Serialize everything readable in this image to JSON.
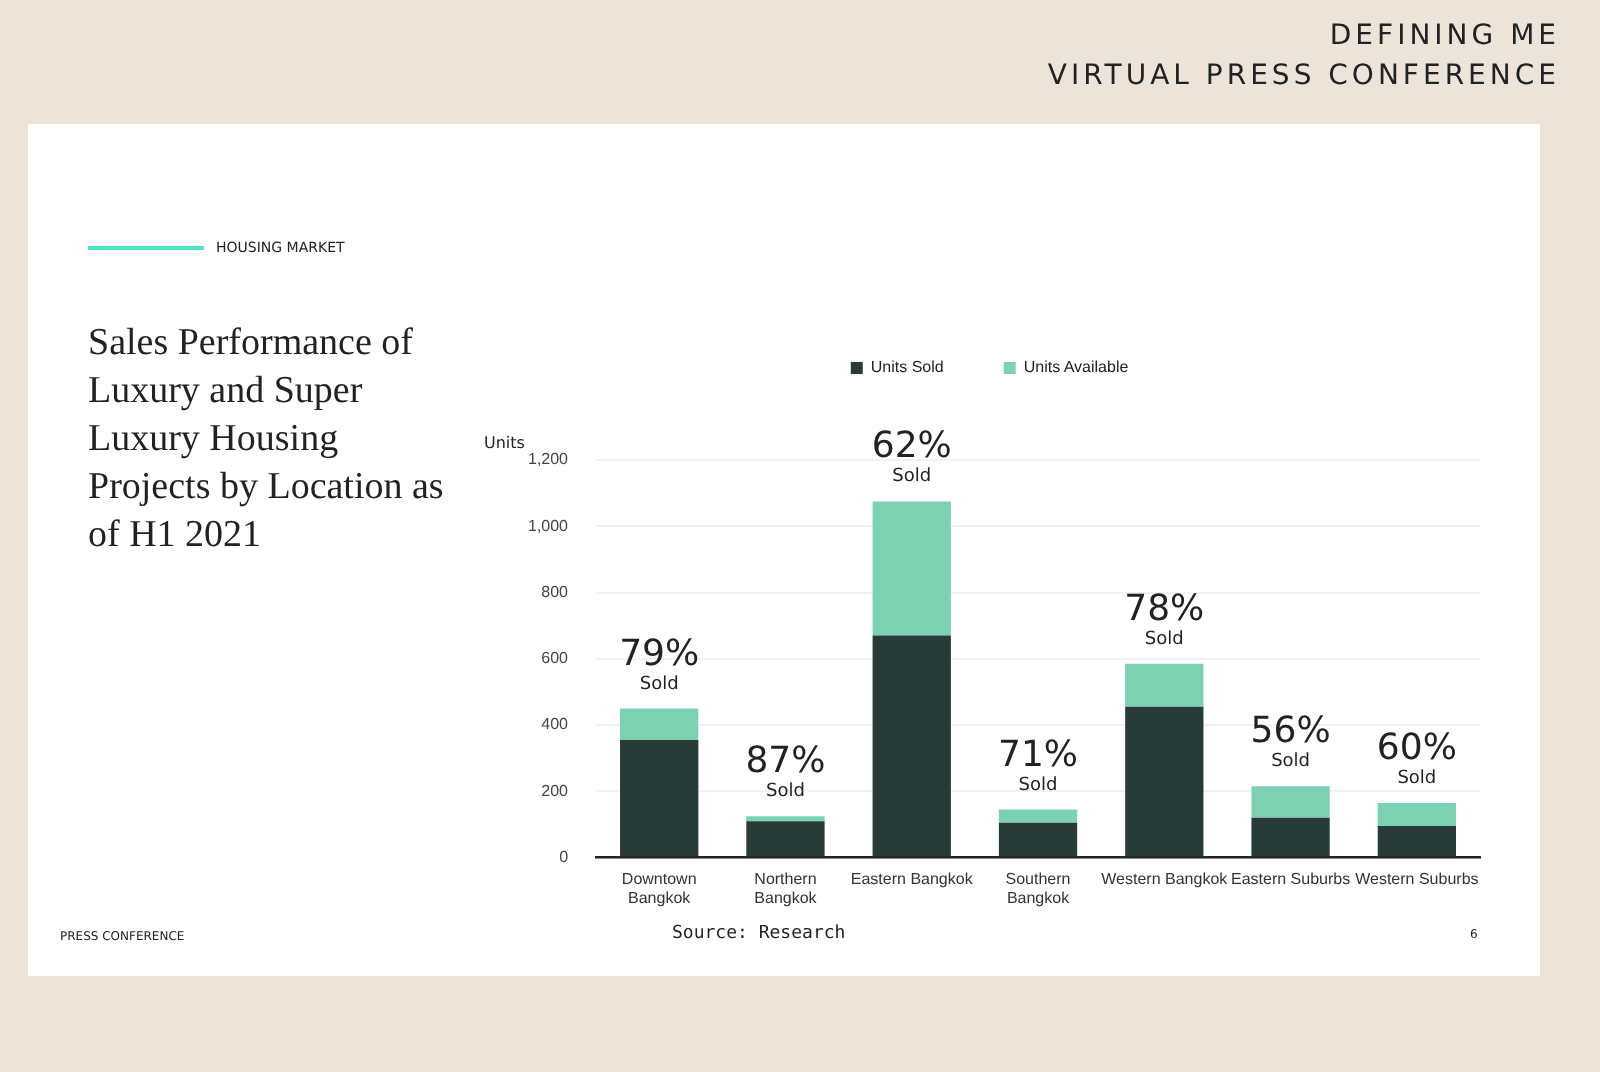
{
  "chart_data": {
    "type": "bar",
    "title": "Sales Performance of Luxury and Super Luxury Housing Projects by Location as of H1 2021",
    "ylabel": "Units",
    "categories": [
      "Downtown Bangkok",
      "Northern Bangkok",
      "Eastern Bangkok",
      "Southern Bangkok",
      "Western Bangkok",
      "Eastern Suburbs",
      "Western Suburbs"
    ],
    "series": [
      {
        "name": "Units Sold",
        "color": "#283b38",
        "values": [
          355,
          110,
          670,
          105,
          455,
          120,
          95
        ]
      },
      {
        "name": "Units Available",
        "color": "#7dd1b3",
        "values": [
          95,
          15,
          405,
          40,
          130,
          95,
          70
        ]
      }
    ],
    "stacked": true,
    "ylim": [
      0,
      1200
    ],
    "yticks": [
      0,
      {
        "value": 200,
        "label": "200"
      },
      {
        "value": 400,
        "label": "400"
      },
      {
        "value": 600,
        "label": "600"
      },
      {
        "value": 800,
        "label": "800"
      },
      {
        "value": 1000,
        "label": "1,000"
      },
      {
        "value": 1200,
        "label": "1,200"
      }
    ],
    "grid": "y",
    "legend": "top",
    "annotations": [
      {
        "text": "79% Sold",
        "x": "Downtown Bangkok",
        "y": 450
      },
      {
        "text": "87% Sold",
        "x": "Northern Bangkok",
        "y": 125
      },
      {
        "text": "62% Sold",
        "x": "Eastern Bangkok",
        "y": 1075
      },
      {
        "text": "71% Sold",
        "x": "Southern Bangkok",
        "y": 145
      },
      {
        "text": "78% Sold",
        "x": "Western Bangkok",
        "y": 585
      },
      {
        "text": "56% Sold",
        "x": "Eastern Suburbs",
        "y": 215
      },
      {
        "text": "60% Sold",
        "x": "Western Suburbs",
        "y": 165
      },
      "DEFINING ME",
      "VIRTUAL PRESS CONFERENCE",
      "HOUSING MARKET",
      "PRESS CONFERENCE",
      "Source: Research",
      "6"
    ]
  }
}
